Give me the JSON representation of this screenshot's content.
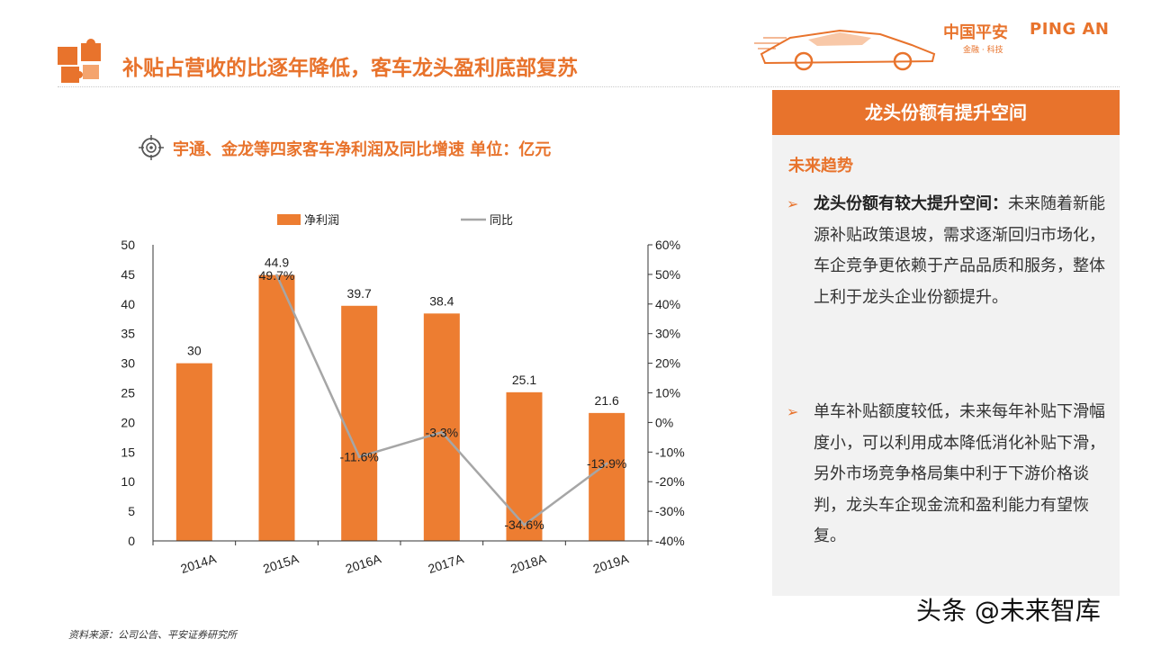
{
  "header": {
    "title": "补贴占营收的比逐年降低，客车龙头盈利底部复苏",
    "brand_cn": "中国平安",
    "brand_en": "PING AN",
    "brand_sub": "金融 · 科技"
  },
  "chart_heading": "宇通、金龙等四家客车净利润及同比增速 单位：亿元",
  "chart_data": {
    "type": "bar+line",
    "categories": [
      "2014A",
      "2015A",
      "2016A",
      "2017A",
      "2018A",
      "2019A"
    ],
    "series": [
      {
        "name": "净利润",
        "type": "bar",
        "axis": "left",
        "values": [
          30,
          44.9,
          39.7,
          38.4,
          25.1,
          21.6
        ],
        "labels": [
          "30",
          "44.9",
          "39.7",
          "38.4",
          "25.1",
          "21.6"
        ]
      },
      {
        "name": "同比",
        "type": "line",
        "axis": "right",
        "values": [
          null,
          49.7,
          -11.6,
          -3.3,
          -34.6,
          -13.9
        ],
        "labels": [
          "",
          "49.7%",
          "-11.6%",
          "-3.3%",
          "-34.6%",
          "-13.9%"
        ]
      }
    ],
    "y_left": {
      "min": 0,
      "max": 50,
      "ticks": [
        0,
        5,
        10,
        15,
        20,
        25,
        30,
        35,
        40,
        45,
        50
      ]
    },
    "y_right": {
      "min": -40,
      "max": 60,
      "ticks": [
        "-40%",
        "-30%",
        "-20%",
        "-10%",
        "0%",
        "10%",
        "20%",
        "30%",
        "40%",
        "50%",
        "60%"
      ],
      "tick_values": [
        -40,
        -30,
        -20,
        -10,
        0,
        10,
        20,
        30,
        40,
        50,
        60
      ]
    },
    "legend": "top",
    "colors": {
      "bar": "#ed7d31",
      "line": "#a6a6a6"
    }
  },
  "panel": {
    "header": "龙头份额有提升空间",
    "subtitle": "未来趋势",
    "bullets": [
      {
        "bold": "龙头份额有较大提升空间：",
        "text": "未来随着新能源补贴政策退坡，需求逐渐回归市场化，车企竞争更依赖于产品品质和服务，整体上利于龙头企业份额提升。"
      },
      {
        "bold": "",
        "text": "单车补贴额度较低，未来每年补贴下滑幅度小，可以利用成本降低消化补贴下滑，另外市场竞争格局集中利于下游价格谈判，龙头车企现金流和盈利能力有望恢复。"
      }
    ],
    "bullet_marker": "➢"
  },
  "footer": {
    "source": "资料来源：公司公告、平安证券研究所",
    "watermark": "头条 @未来智库"
  }
}
